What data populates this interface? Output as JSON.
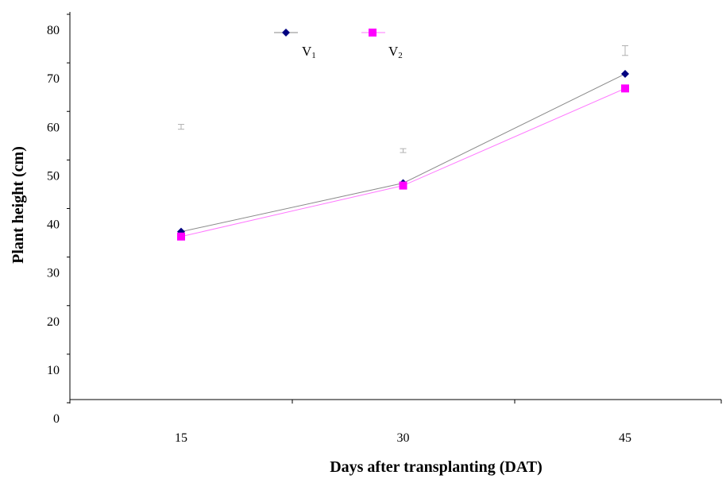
{
  "chart_data": {
    "type": "line",
    "xlabel": "Days after transplanting (DAT)",
    "ylabel": "Plant height (cm)",
    "x": [
      15,
      30,
      45
    ],
    "x_tick_labels": [
      "15",
      "30",
      "45"
    ],
    "ylim": [
      0,
      80
    ],
    "y_ticks": [
      0,
      10,
      20,
      30,
      40,
      50,
      60,
      70,
      80
    ],
    "grid": false,
    "legend_position": "top-center",
    "series": [
      {
        "name": "V",
        "name_subscript": "1",
        "values": [
          38.5,
          48.5,
          71
        ],
        "color": "#000080",
        "line_color": "#8a8a8a",
        "marker": "diamond"
      },
      {
        "name": "V",
        "name_subscript": "2",
        "values": [
          37.5,
          48,
          68
        ],
        "color": "#ff00ff",
        "line_color": "#ff77ff",
        "marker": "square"
      }
    ],
    "error_bars": [
      {
        "x": 15,
        "low": 59.6,
        "high": 60.6
      },
      {
        "x": 30,
        "low": 54.8,
        "high": 55.6
      },
      {
        "x": 45,
        "low": 74.8,
        "high": 76.8
      }
    ]
  }
}
